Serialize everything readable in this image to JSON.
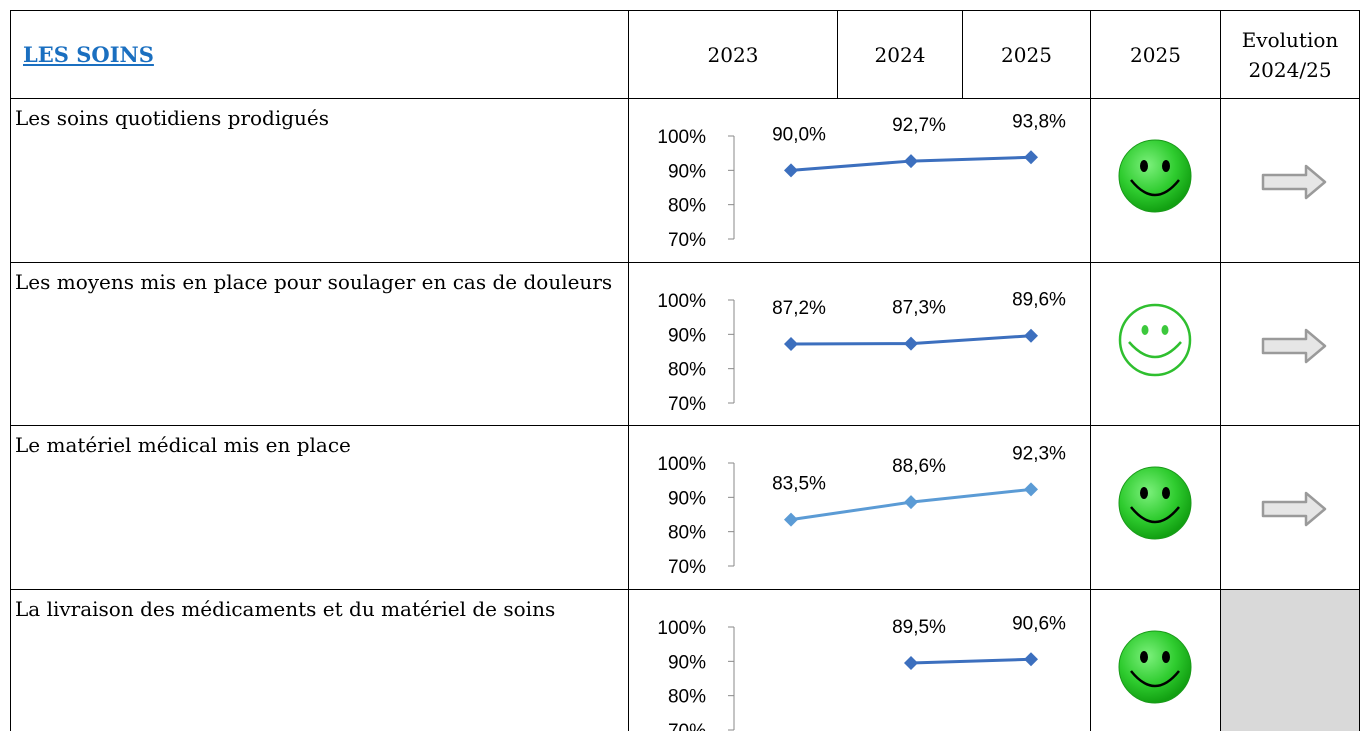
{
  "table": {
    "title": "LES SOINS",
    "columns": [
      "2023",
      "2024",
      "2025",
      "2025",
      "Evolution 2024/25"
    ],
    "chart_axis": {
      "ylim": [
        70,
        100
      ],
      "yticks": [
        {
          "value": 100,
          "label": "100%"
        },
        {
          "value": 90,
          "label": "90%"
        },
        {
          "value": 80,
          "label": "80%"
        },
        {
          "value": 70,
          "label": "70%"
        }
      ]
    },
    "rows": [
      {
        "label": "Les soins quotidiens prodigués",
        "chart": {
          "type": "line",
          "color": "#3c6fbe",
          "values": [
            90.0,
            92.7,
            93.8
          ],
          "value_labels": [
            "90,0%",
            "92,7%",
            "93,8%"
          ]
        },
        "smiley": "filled",
        "arrow": "right"
      },
      {
        "label": "Les moyens mis en place pour soulager en cas de douleurs",
        "chart": {
          "type": "line",
          "color": "#3c6fbe",
          "values": [
            87.2,
            87.3,
            89.6
          ],
          "value_labels": [
            "87,2%",
            "87,3%",
            "89,6%"
          ]
        },
        "smiley": "outline",
        "arrow": "right"
      },
      {
        "label": "Le matériel médical mis en place",
        "chart": {
          "type": "line",
          "color": "#5b9bd5",
          "values": [
            83.5,
            88.6,
            92.3
          ],
          "value_labels": [
            "83,5%",
            "88,6%",
            "92,3%"
          ]
        },
        "smiley": "filled",
        "arrow": "right"
      },
      {
        "label": "La livraison des médicaments et du matériel de soins",
        "chart": {
          "type": "line",
          "color": "#3c6fbe",
          "values": [
            null,
            89.5,
            90.6
          ],
          "value_labels": [
            null,
            "89,5%",
            "90,6%"
          ]
        },
        "smiley": "filled",
        "arrow": null
      }
    ]
  }
}
